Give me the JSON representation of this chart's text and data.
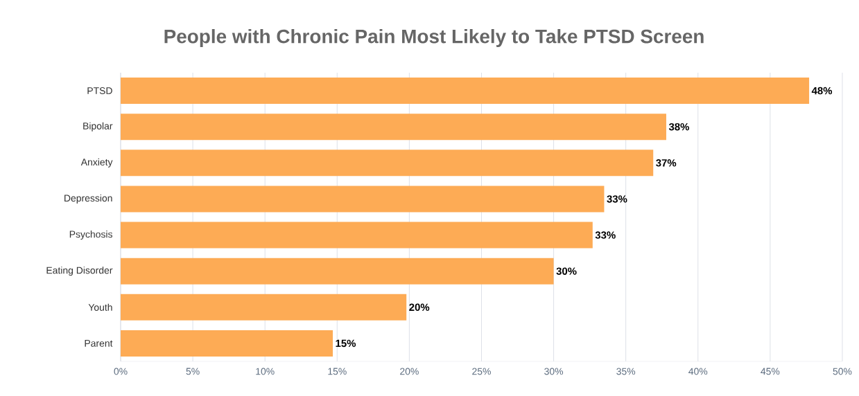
{
  "chart_data": {
    "type": "bar",
    "orientation": "horizontal",
    "title": "People with Chronic Pain Most Likely to Take PTSD Screen",
    "categories": [
      "PTSD",
      "Bipolar",
      "Anxiety",
      "Depression",
      "Psychosis",
      "Eating Disorder",
      "Youth",
      "Parent"
    ],
    "values": [
      47.7,
      37.8,
      36.9,
      33.5,
      32.7,
      30.0,
      19.8,
      14.7
    ],
    "value_labels": [
      "48%",
      "38%",
      "37%",
      "33%",
      "33%",
      "30%",
      "20%",
      "15%"
    ],
    "color": "#fdab55",
    "xlim": [
      0,
      50
    ],
    "xticks": [
      {
        "value": 0,
        "label": "0%"
      },
      {
        "value": 5,
        "label": "5%"
      },
      {
        "value": 10,
        "label": "10%"
      },
      {
        "value": 15,
        "label": "15%"
      },
      {
        "value": 20,
        "label": "20%"
      },
      {
        "value": 25,
        "label": "25%"
      },
      {
        "value": 30,
        "label": "30%"
      },
      {
        "value": 35,
        "label": "35%"
      },
      {
        "value": 40,
        "label": "40%"
      },
      {
        "value": 45,
        "label": "45%"
      },
      {
        "value": 50,
        "label": "50%"
      }
    ],
    "grid": "x"
  }
}
